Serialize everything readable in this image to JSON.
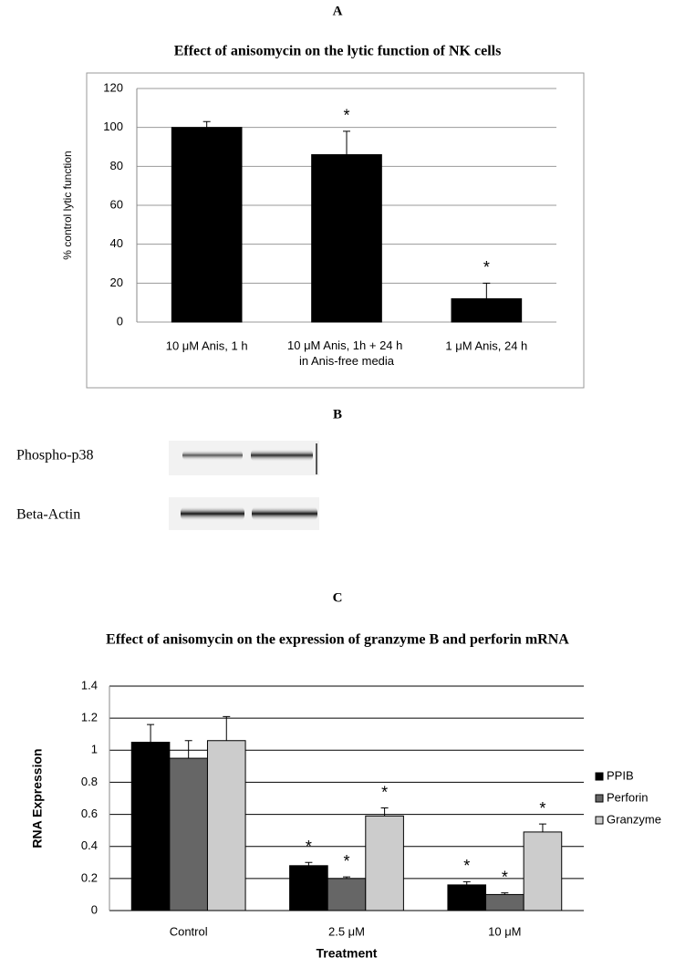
{
  "panel_labels": [
    "A",
    "B",
    "C"
  ],
  "blot": {
    "labels": [
      "Phospho-p38",
      "Beta-Actin"
    ]
  },
  "chart_data": [
    {
      "type": "bar",
      "title": "Effect of anisomycin on the lytic function of NK cells",
      "y_label": "% control lytic function",
      "categories": [
        "10 μM Anis, 1 h",
        "10 μM Anis, 1h + 24 h in Anis-free media",
        "1 μM Anis, 24 h"
      ],
      "series": [
        {
          "name": "Lytic function",
          "color": "#000000",
          "values": [
            100,
            86,
            12
          ],
          "errors": [
            3,
            12,
            8
          ],
          "annotations": [
            null,
            "*",
            "*"
          ]
        }
      ],
      "ylim": [
        0,
        120
      ],
      "yticks": [
        0,
        20,
        40,
        60,
        80,
        100,
        120
      ],
      "grid": true,
      "legend": false
    },
    {
      "type": "bar",
      "title": "Effect of anisomycin on the expression of granzyme B and perforin mRNA",
      "y_label": "RNA Expression",
      "x_label": "Treatment",
      "categories": [
        "Control",
        "2.5 μM",
        "10 μM"
      ],
      "series": [
        {
          "name": "PPIB",
          "color": "#000000",
          "values": [
            1.05,
            0.28,
            0.16
          ],
          "errors": [
            0.11,
            0.02,
            0.02
          ],
          "annotations": [
            null,
            "*",
            "*"
          ]
        },
        {
          "name": "Perforin",
          "color": "#666666",
          "values": [
            0.95,
            0.2,
            0.1
          ],
          "errors": [
            0.11,
            0.01,
            0.01
          ],
          "annotations": [
            null,
            "*",
            "*"
          ]
        },
        {
          "name": "Granzyme",
          "color": "#cccccc",
          "values": [
            1.06,
            0.59,
            0.49
          ],
          "errors": [
            0.15,
            0.05,
            0.05
          ],
          "annotations": [
            null,
            "*",
            "*"
          ]
        }
      ],
      "ylim": [
        0,
        1.4
      ],
      "yticks": [
        0,
        0.2,
        0.4,
        0.6,
        0.8,
        1,
        1.2,
        1.4
      ],
      "grid": true,
      "legend": "right"
    }
  ]
}
